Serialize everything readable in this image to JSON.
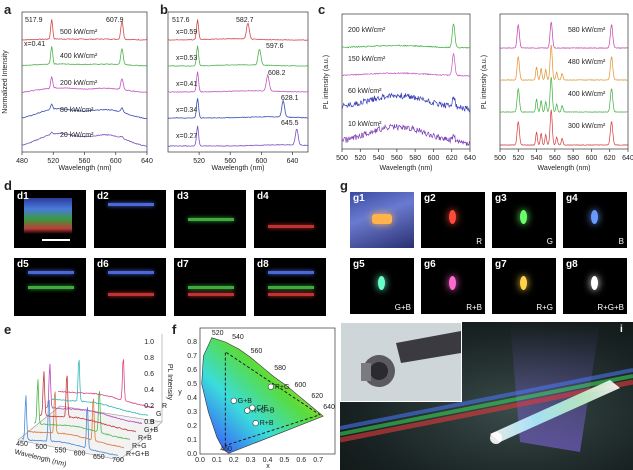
{
  "figure": {
    "panel_labels": [
      "a",
      "b",
      "c",
      "d",
      "e",
      "f",
      "g",
      "h"
    ],
    "inset_label": "i"
  },
  "chart_data": [
    {
      "panel": "a",
      "type": "line",
      "xlabel": "Wavelength (nm)",
      "ylabel": "Normalized Intensity",
      "xlim": [
        480,
        640
      ],
      "xticks": [
        480,
        520,
        560,
        600,
        640
      ],
      "series": [
        {
          "label": "500 kW/cm²",
          "color": "#d44a4a"
        },
        {
          "label": "400 kW/cm²",
          "color": "#4fb34f"
        },
        {
          "label": "200 kW/cm²",
          "color": "#c257c2"
        },
        {
          "label": "80 kW/cm²",
          "color": "#3a4fb5"
        },
        {
          "label": "20 kW/cm²",
          "color": "#7a4fc2"
        }
      ],
      "annotations": [
        "517.9",
        "607.9",
        "x=0.41"
      ]
    },
    {
      "panel": "b",
      "type": "line",
      "xlabel": "Wavelength (nm)",
      "xlim": [
        480,
        660
      ],
      "xticks": [
        520,
        560,
        600,
        640
      ],
      "series": [
        {
          "label": "x=0.59",
          "color": "#d44a4a",
          "peak": 582.7
        },
        {
          "label": "x=0.53",
          "color": "#4fb34f",
          "peak": 597.6
        },
        {
          "label": "x=0.41",
          "color": "#c257c2",
          "peak": 608.2
        },
        {
          "label": "x=0.34",
          "color": "#3a4fb5",
          "peak": 628.1
        },
        {
          "label": "x=0.27",
          "color": "#7a4fc2",
          "peak": 645.5
        }
      ],
      "annotations": [
        "517.6",
        "582.7",
        "597.6",
        "608.2",
        "628.1",
        "645.5"
      ]
    },
    {
      "panel": "c-left",
      "type": "line",
      "xlabel": "Wavelength (nm)",
      "ylabel": "PL intensity (a.u.)",
      "xlim": [
        500,
        640
      ],
      "xticks": [
        500,
        520,
        540,
        560,
        580,
        600,
        620,
        640
      ],
      "series": [
        {
          "label": "200 kW/cm²",
          "color": "#3fae3f"
        },
        {
          "label": "150 kW/cm²",
          "color": "#c257c2"
        },
        {
          "label": "60 kW/cm²",
          "color": "#3a3fb5"
        },
        {
          "label": "10 kW/cm²",
          "color": "#7a3fb5"
        }
      ]
    },
    {
      "panel": "c-right",
      "type": "line",
      "xlabel": "Wavelength (nm)",
      "ylabel": "PL intensity (a.u.)",
      "xlim": [
        500,
        640
      ],
      "xticks": [
        500,
        520,
        540,
        560,
        580,
        600,
        620,
        640
      ],
      "series": [
        {
          "label": "580 kW/cm²",
          "color": "#c23fa8"
        },
        {
          "label": "480 kW/cm²",
          "color": "#e0902e"
        },
        {
          "label": "400 kW/cm²",
          "color": "#3fae3f"
        },
        {
          "label": "300 kW/cm²",
          "color": "#d43a3a"
        }
      ]
    },
    {
      "panel": "e",
      "type": "line",
      "xlabel": "Wavelength (nm)",
      "ylabel": "PL Intensity",
      "xticks": [
        450,
        500,
        550,
        600,
        650,
        700
      ],
      "zticks": [
        0.0,
        0.2,
        0.4,
        0.6,
        0.8,
        1.0
      ],
      "series_labels": [
        "R+G+B",
        "R+G",
        "R+B",
        "G+B",
        "B",
        "G",
        "R"
      ]
    },
    {
      "panel": "f",
      "type": "scatter",
      "xlabel": "x",
      "ylabel": "y",
      "xticks": [
        0.0,
        0.1,
        0.2,
        0.3,
        0.4,
        0.5,
        0.6,
        0.7
      ],
      "yticks": [
        0.0,
        0.1,
        0.2,
        0.3,
        0.4,
        0.5,
        0.6,
        0.7,
        0.8
      ],
      "locus_labels": [
        "520",
        "540",
        "560",
        "580",
        "600",
        "620",
        "640",
        "460"
      ],
      "points": [
        {
          "label": "R+G+B",
          "x": 0.28,
          "y": 0.31
        },
        {
          "label": "G+B",
          "x": 0.2,
          "y": 0.38
        },
        {
          "label": "R+G",
          "x": 0.42,
          "y": 0.48
        },
        {
          "label": "R+B",
          "x": 0.33,
          "y": 0.22
        },
        {
          "label": "CIE",
          "x": 0.31,
          "y": 0.33
        }
      ]
    }
  ],
  "panel_d": {
    "tiles": [
      "d1",
      "d2",
      "d3",
      "d4",
      "d5",
      "d6",
      "d7",
      "d8"
    ]
  },
  "panel_g": {
    "tiles": [
      {
        "id": "g1",
        "tag": ""
      },
      {
        "id": "g2",
        "tag": "R",
        "color": "#ff4a3a"
      },
      {
        "id": "g3",
        "tag": "G",
        "color": "#6aff6a"
      },
      {
        "id": "g4",
        "tag": "B",
        "color": "#6a9aff"
      },
      {
        "id": "g5",
        "tag": "G+B",
        "color": "#6affc8"
      },
      {
        "id": "g6",
        "tag": "R+B",
        "color": "#ff6acf"
      },
      {
        "id": "g7",
        "tag": "R+G",
        "color": "#ffd04a"
      },
      {
        "id": "g8",
        "tag": "R+G+B",
        "color": "#ffffff"
      }
    ]
  },
  "colors": {
    "red": "#d44a4a",
    "green": "#4fb34f",
    "magenta": "#c257c2",
    "blue": "#3a4fb5",
    "violet": "#7a4fc2",
    "orange": "#e0902e"
  }
}
